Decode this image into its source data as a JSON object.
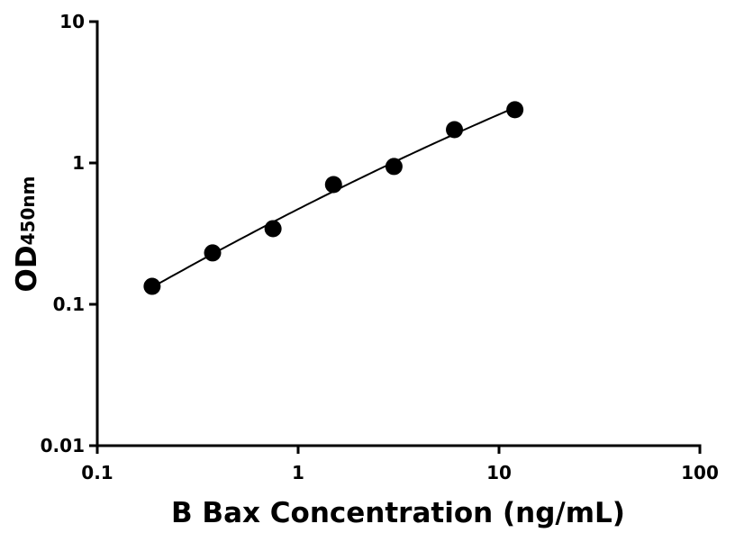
{
  "chart_data": {
    "type": "scatter",
    "xlabel": "B Bax Concentration (ng/mL)",
    "ylabel": "OD",
    "ylabel_subscript": "450nm",
    "x": [
      0.1875,
      0.375,
      0.75,
      1.5,
      3,
      6,
      12
    ],
    "values": [
      0.134,
      0.231,
      0.343,
      0.703,
      0.944,
      1.72,
      2.38
    ],
    "color": "#000000",
    "xlog": true,
    "ylog": true,
    "fit_curve": true,
    "xlim": [
      0.1,
      100
    ],
    "xticks": [
      0.1,
      1,
      10,
      100
    ],
    "ylim": [
      0.01,
      10
    ],
    "yticks": [
      0.01,
      0.1,
      1,
      10
    ]
  }
}
